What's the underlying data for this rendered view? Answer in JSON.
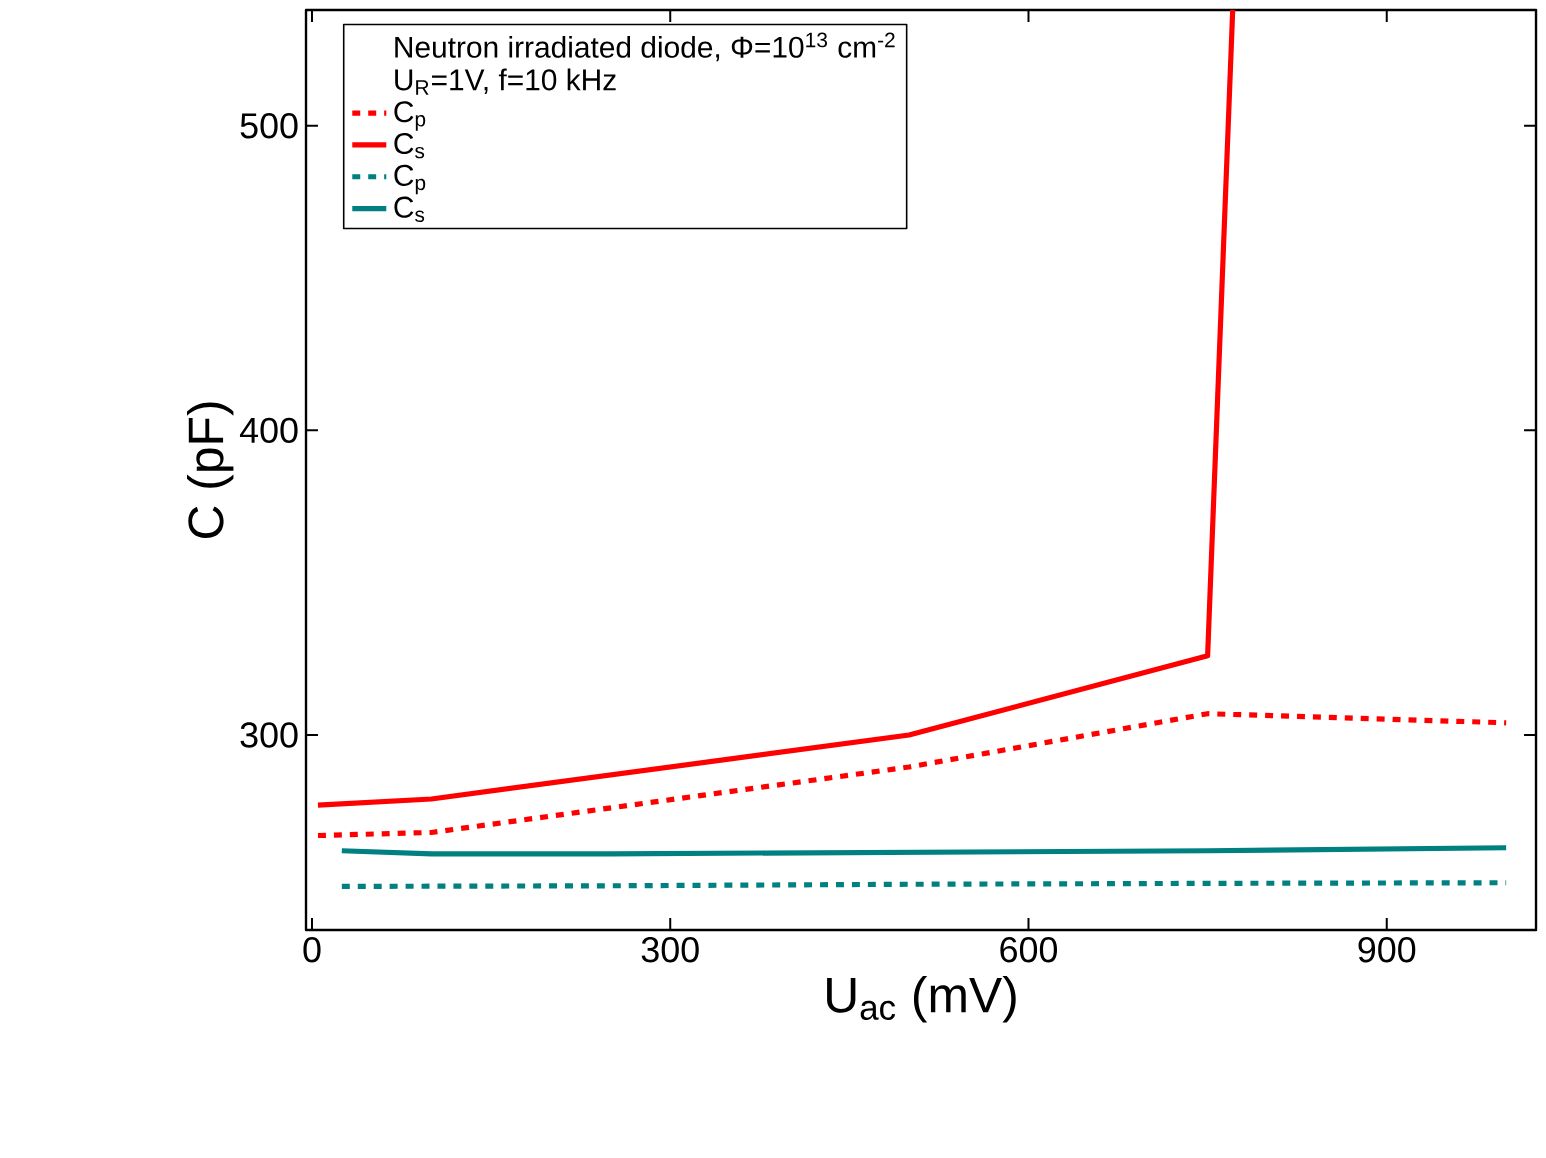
{
  "chart_data": {
    "type": "line",
    "xlabel": "U$_{ac}$ (mV)",
    "ylabel": "C (pF)",
    "legend_title": "Neutron irradiated diode, Φ=10$^{13}$ cm$^{-2}$",
    "annotations": [
      "U$_{R}$=1V, f=10 kHz"
    ],
    "xlim": [
      -5,
      1025
    ],
    "ylim": [
      236,
      538
    ],
    "xticks": [
      0,
      300,
      600,
      900
    ],
    "yticks": [
      300,
      400,
      500
    ],
    "grid": false,
    "legend": "top left",
    "marker": "none",
    "series": [
      {
        "name": "C$_{p}$",
        "color": "#ff0000",
        "line_style": "dotted",
        "x": [
          5,
          100,
          500,
          750,
          1000
        ],
        "values": [
          267,
          268,
          289.5,
          307,
          304
        ]
      },
      {
        "name": "C$_{s}$",
        "color": "#ff0000",
        "line_style": "solid",
        "x": [
          5,
          100,
          500,
          750,
          771
        ],
        "values": [
          277,
          279,
          300,
          326,
          538
        ]
      },
      {
        "name": "C$_{p}$",
        "color": "#008080",
        "line_style": "dotted",
        "x": [
          25,
          250,
          500,
          750,
          1000
        ],
        "values": [
          250.3,
          250.5,
          251,
          251.3,
          251.5
        ]
      },
      {
        "name": "C$_{s}$",
        "color": "#008080",
        "line_style": "solid",
        "x": [
          25,
          100,
          250,
          500,
          750,
          1000
        ],
        "values": [
          262,
          261,
          261,
          261.5,
          262,
          263
        ]
      }
    ]
  }
}
